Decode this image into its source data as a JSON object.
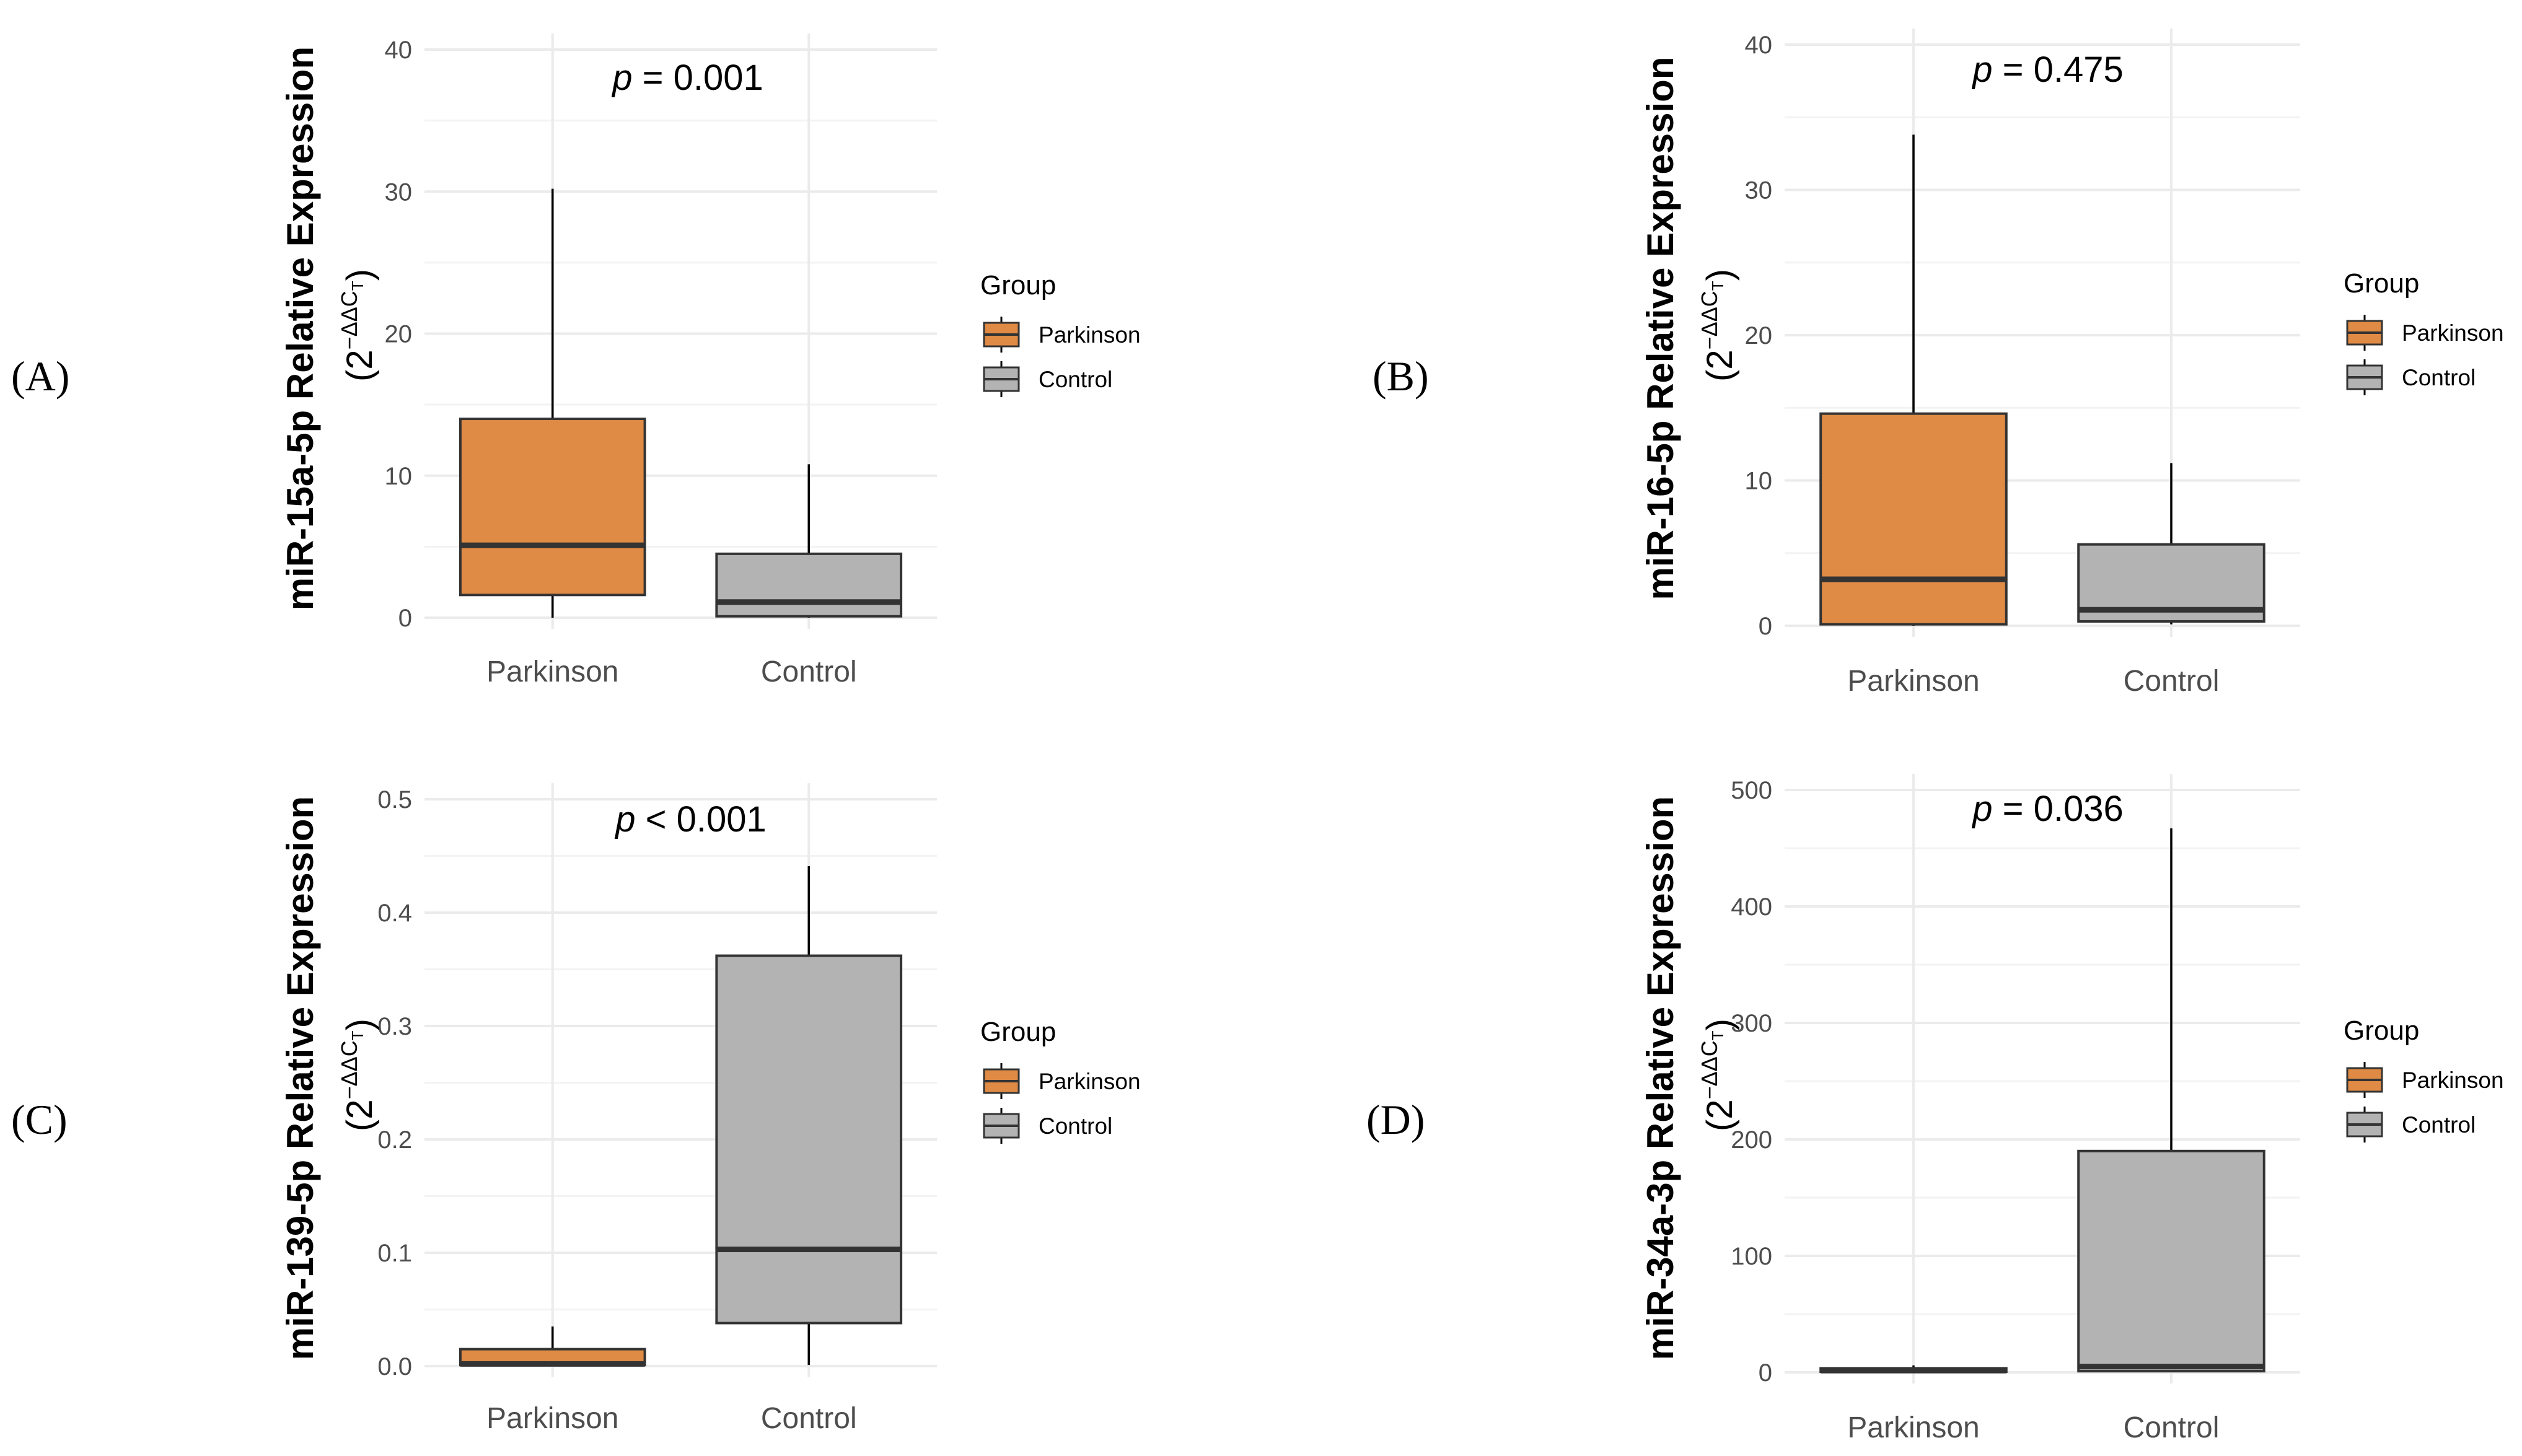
{
  "chart_data": [
    {
      "panel_label": "(A)",
      "type": "box",
      "ylabel": "miR-15a-5p Relative Expression",
      "yunit": "(2^−ΔΔC_T)",
      "annotation": {
        "italic": "p",
        "rest": " = 0.001"
      },
      "ylim": [
        0,
        40
      ],
      "yticks": [
        0,
        10,
        20,
        30,
        40
      ],
      "categories": [
        "Parkinson",
        "Control"
      ],
      "boxes": [
        {
          "group": "Parkinson",
          "min": 0,
          "q1": 1.6,
          "median": 5.1,
          "q3": 14.0,
          "max": 30.2
        },
        {
          "group": "Control",
          "min": 0,
          "q1": 0.1,
          "median": 1.1,
          "q3": 4.5,
          "max": 10.8
        }
      ],
      "grid": true,
      "legend": {
        "title": "Group",
        "position": "right",
        "entries": [
          "Parkinson",
          "Control"
        ]
      }
    },
    {
      "panel_label": "(B)",
      "type": "box",
      "ylabel": "miR-16-5p Relative Expression",
      "yunit": "(2^−ΔΔC_T)",
      "annotation": {
        "italic": "p",
        "rest": " = 0.475"
      },
      "ylim": [
        0,
        40
      ],
      "yticks": [
        0,
        10,
        20,
        30,
        40
      ],
      "categories": [
        "Parkinson",
        "Control"
      ],
      "boxes": [
        {
          "group": "Parkinson",
          "min": 0,
          "q1": 0.1,
          "median": 3.2,
          "q3": 14.6,
          "max": 33.8
        },
        {
          "group": "Control",
          "min": 0.1,
          "q1": 0.3,
          "median": 1.1,
          "q3": 5.6,
          "max": 11.2
        }
      ],
      "grid": true,
      "legend": {
        "title": "Group",
        "position": "right",
        "entries": [
          "Parkinson",
          "Control"
        ]
      }
    },
    {
      "panel_label": "(C)",
      "type": "box",
      "ylabel": "miR-139-5p Relative Expression",
      "yunit": "(2^−ΔΔC_T)",
      "annotation": {
        "italic": "p",
        "rest": " < 0.001"
      },
      "ylim": [
        0,
        0.5
      ],
      "yticks": [
        "0.0",
        "0.1",
        "0.2",
        "0.3",
        "0.4",
        "0.5"
      ],
      "categories": [
        "Parkinson",
        "Control"
      ],
      "boxes": [
        {
          "group": "Parkinson",
          "min": 0,
          "q1": 0.001,
          "median": 0.002,
          "q3": 0.015,
          "max": 0.035
        },
        {
          "group": "Control",
          "min": 0.001,
          "q1": 0.038,
          "median": 0.103,
          "q3": 0.362,
          "max": 0.441
        }
      ],
      "grid": true,
      "legend": {
        "title": "Group",
        "position": "right",
        "entries": [
          "Parkinson",
          "Control"
        ]
      }
    },
    {
      "panel_label": "(D)",
      "type": "box",
      "ylabel": "miR-34a-3p Relative Expression",
      "yunit": "(2^−ΔΔC_T)",
      "annotation": {
        "italic": "p",
        "rest": " = 0.036"
      },
      "ylim": [
        0,
        500
      ],
      "yticks": [
        0,
        100,
        200,
        300,
        400,
        500
      ],
      "categories": [
        "Parkinson",
        "Control"
      ],
      "boxes": [
        {
          "group": "Parkinson",
          "min": 0,
          "q1": 0.5,
          "median": 1.5,
          "q3": 3.5,
          "max": 6
        },
        {
          "group": "Control",
          "min": 0,
          "q1": 1,
          "median": 5,
          "q3": 190,
          "max": 467
        }
      ],
      "grid": true,
      "legend": {
        "title": "Group",
        "position": "right",
        "entries": [
          "Parkinson",
          "Control"
        ]
      }
    }
  ],
  "colors": {
    "Parkinson": "#e08b45",
    "Control": "#b3b3b3",
    "grid": "#ebebeb",
    "box_outline": "#333333"
  }
}
